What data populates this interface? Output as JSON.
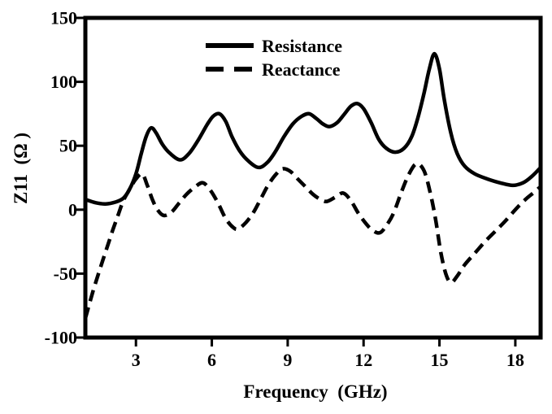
{
  "figure": {
    "background": "#ffffff",
    "foreground": "#000000"
  },
  "chart_data": {
    "type": "line",
    "title": "",
    "xlabel": "Frequency  (GHz)",
    "ylabel": "Z11  (Ω )",
    "xlim": [
      1,
      19
    ],
    "ylim": [
      -100,
      150
    ],
    "x_ticks": [
      3,
      6,
      9,
      12,
      15,
      18
    ],
    "y_ticks": [
      150,
      100,
      50,
      0,
      -50,
      -100
    ],
    "grid": false,
    "legend": {
      "position": "top-center",
      "entries": [
        "Resistance",
        "Reactance"
      ]
    },
    "series": [
      {
        "name": "Resistance",
        "line_style": "solid",
        "color": "#000000",
        "points": [
          [
            1.0,
            8
          ],
          [
            1.4,
            5.5
          ],
          [
            1.8,
            4.5
          ],
          [
            2.2,
            6
          ],
          [
            2.5,
            9
          ],
          [
            2.75,
            16
          ],
          [
            3.0,
            28
          ],
          [
            3.2,
            43
          ],
          [
            3.4,
            57
          ],
          [
            3.6,
            64
          ],
          [
            3.8,
            60
          ],
          [
            4.05,
            51
          ],
          [
            4.35,
            44
          ],
          [
            4.75,
            39
          ],
          [
            5.1,
            44
          ],
          [
            5.45,
            54
          ],
          [
            5.8,
            66
          ],
          [
            6.05,
            73
          ],
          [
            6.3,
            75
          ],
          [
            6.55,
            69
          ],
          [
            6.8,
            57
          ],
          [
            7.1,
            46
          ],
          [
            7.45,
            38
          ],
          [
            7.85,
            33
          ],
          [
            8.2,
            37
          ],
          [
            8.5,
            45
          ],
          [
            8.85,
            57
          ],
          [
            9.2,
            67
          ],
          [
            9.55,
            73
          ],
          [
            9.85,
            75
          ],
          [
            10.15,
            71
          ],
          [
            10.4,
            67
          ],
          [
            10.65,
            65
          ],
          [
            10.95,
            68
          ],
          [
            11.25,
            75
          ],
          [
            11.5,
            81
          ],
          [
            11.75,
            83
          ],
          [
            12.0,
            79
          ],
          [
            12.3,
            68
          ],
          [
            12.6,
            55
          ],
          [
            12.9,
            48
          ],
          [
            13.25,
            45
          ],
          [
            13.6,
            48
          ],
          [
            13.9,
            57
          ],
          [
            14.15,
            72
          ],
          [
            14.4,
            92
          ],
          [
            14.6,
            110
          ],
          [
            14.8,
            122
          ],
          [
            15.0,
            110
          ],
          [
            15.2,
            85
          ],
          [
            15.45,
            60
          ],
          [
            15.7,
            44
          ],
          [
            16.0,
            34
          ],
          [
            16.4,
            28
          ],
          [
            16.9,
            24
          ],
          [
            17.4,
            21
          ],
          [
            17.9,
            19
          ],
          [
            18.3,
            21
          ],
          [
            18.65,
            26
          ],
          [
            19.0,
            33
          ]
        ]
      },
      {
        "name": "Reactance",
        "line_style": "dashed",
        "color": "#000000",
        "points": [
          [
            1.0,
            -85
          ],
          [
            1.3,
            -64
          ],
          [
            1.6,
            -45
          ],
          [
            1.9,
            -27
          ],
          [
            2.1,
            -15
          ],
          [
            2.3,
            -4
          ],
          [
            2.5,
            7
          ],
          [
            2.75,
            16
          ],
          [
            3.0,
            24
          ],
          [
            3.25,
            28
          ],
          [
            3.45,
            19
          ],
          [
            3.65,
            8
          ],
          [
            3.85,
            0
          ],
          [
            4.1,
            -4.5
          ],
          [
            4.4,
            -2
          ],
          [
            4.7,
            5
          ],
          [
            5.0,
            12
          ],
          [
            5.35,
            18
          ],
          [
            5.65,
            21
          ],
          [
            5.95,
            15
          ],
          [
            6.25,
            5
          ],
          [
            6.55,
            -7
          ],
          [
            6.85,
            -14
          ],
          [
            7.05,
            -15
          ],
          [
            7.35,
            -10
          ],
          [
            7.65,
            -2
          ],
          [
            7.95,
            9
          ],
          [
            8.25,
            20
          ],
          [
            8.55,
            28
          ],
          [
            8.8,
            32
          ],
          [
            9.1,
            30
          ],
          [
            9.4,
            24
          ],
          [
            9.7,
            18
          ],
          [
            10.0,
            12
          ],
          [
            10.3,
            8
          ],
          [
            10.55,
            6.5
          ],
          [
            10.9,
            10
          ],
          [
            11.2,
            13
          ],
          [
            11.5,
            7
          ],
          [
            11.8,
            -3
          ],
          [
            12.1,
            -11
          ],
          [
            12.35,
            -16
          ],
          [
            12.65,
            -18
          ],
          [
            12.95,
            -11
          ],
          [
            13.2,
            -2
          ],
          [
            13.5,
            14
          ],
          [
            13.8,
            28
          ],
          [
            14.1,
            36
          ],
          [
            14.4,
            30
          ],
          [
            14.65,
            12
          ],
          [
            14.85,
            -8
          ],
          [
            15.05,
            -33
          ],
          [
            15.25,
            -50
          ],
          [
            15.45,
            -57
          ],
          [
            15.7,
            -52
          ],
          [
            16.0,
            -43
          ],
          [
            16.4,
            -34
          ],
          [
            16.8,
            -25
          ],
          [
            17.2,
            -17
          ],
          [
            17.6,
            -9
          ],
          [
            18.0,
            0
          ],
          [
            18.4,
            8
          ],
          [
            18.7,
            13
          ],
          [
            19.0,
            18
          ]
        ]
      }
    ]
  }
}
